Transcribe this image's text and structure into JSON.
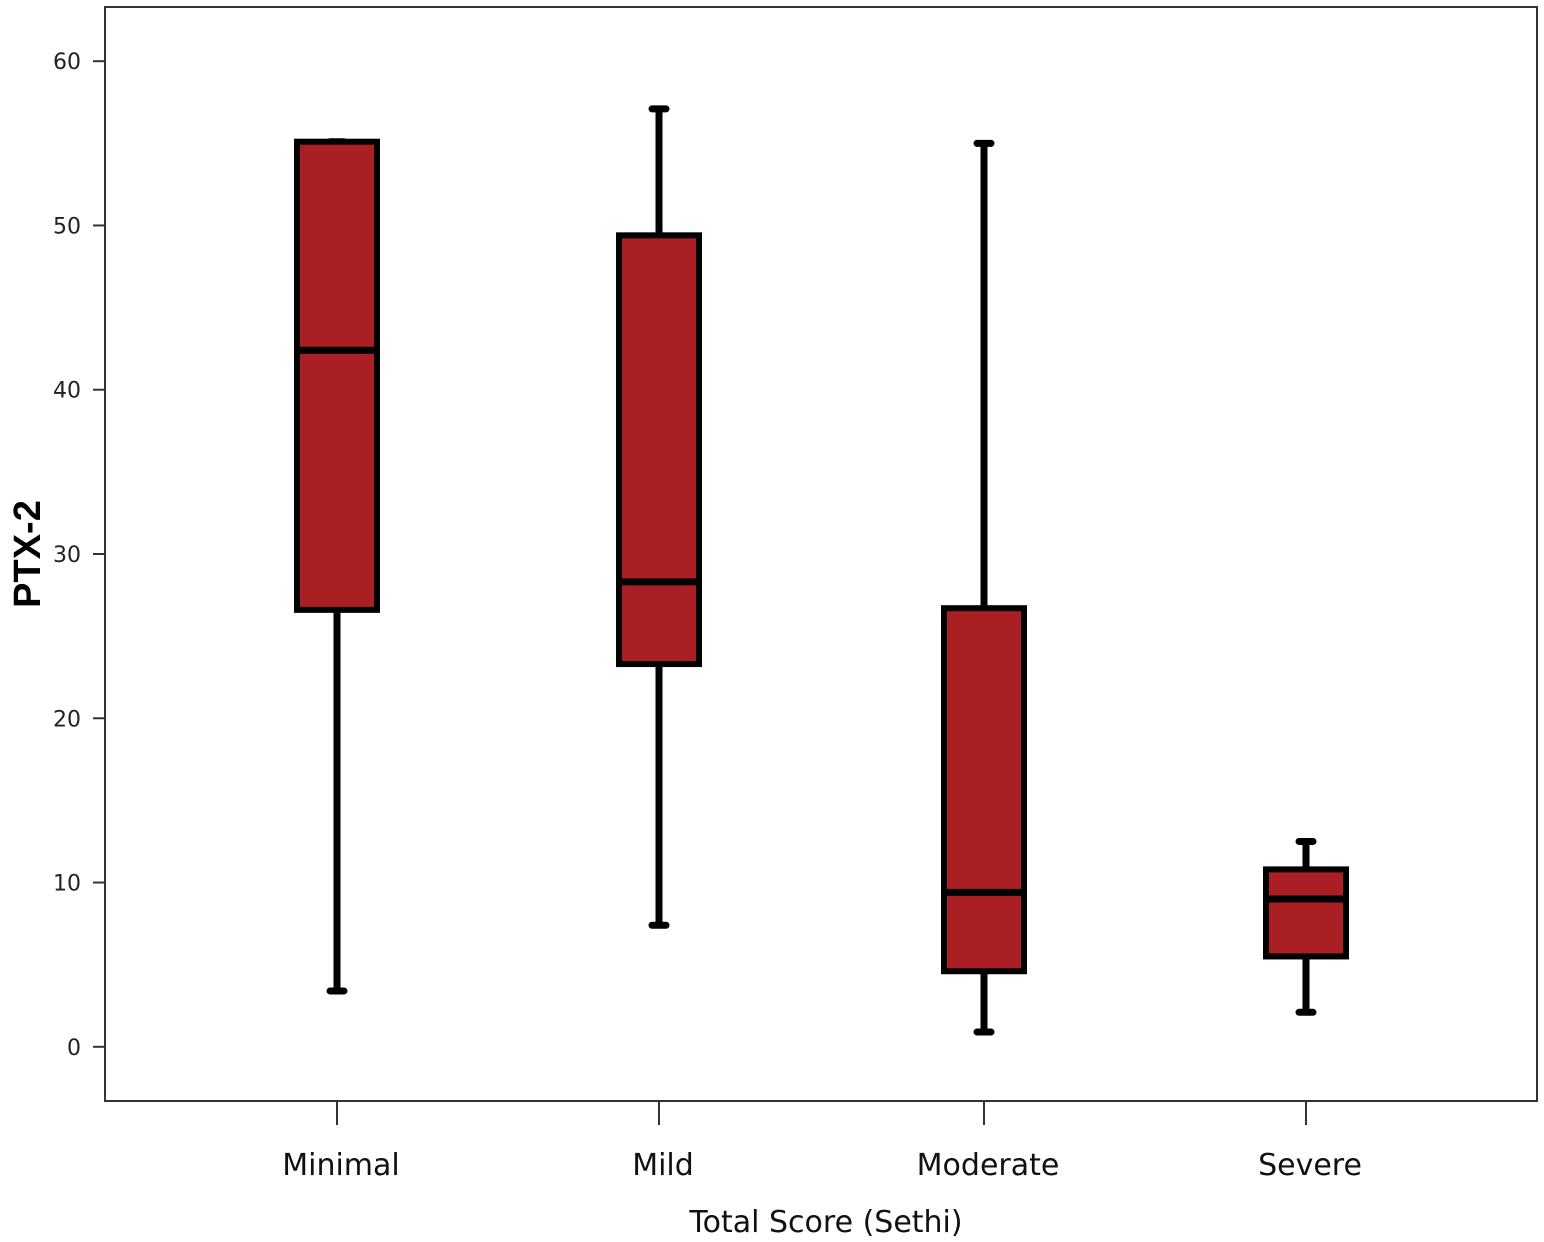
{
  "chart_data": {
    "type": "boxplot",
    "title": "",
    "xlabel": "Total Score (Sethi)",
    "ylabel": "PTX-2",
    "ylim": [
      -3.3,
      63.3
    ],
    "yticks": [
      0,
      10,
      20,
      30,
      40,
      50,
      60
    ],
    "grid": false,
    "legend": "none",
    "box_color": "#a91f24",
    "line_color": "#000000",
    "categories": [
      "Minimal",
      "Mild",
      "Moderate",
      "Severe"
    ],
    "boxes": [
      {
        "category": "Minimal",
        "min": 3.4,
        "q1": 26.6,
        "median": 42.4,
        "q3": 55.1,
        "max": 55.1
      },
      {
        "category": "Mild",
        "min": 7.4,
        "q1": 23.3,
        "median": 28.3,
        "q3": 49.4,
        "max": 57.1
      },
      {
        "category": "Moderate",
        "min": 0.9,
        "q1": 4.6,
        "median": 9.4,
        "q3": 26.7,
        "max": 55.0
      },
      {
        "category": "Severe",
        "min": 2.1,
        "q1": 5.5,
        "median": 9.0,
        "q3": 10.8,
        "max": 12.5
      }
    ]
  }
}
